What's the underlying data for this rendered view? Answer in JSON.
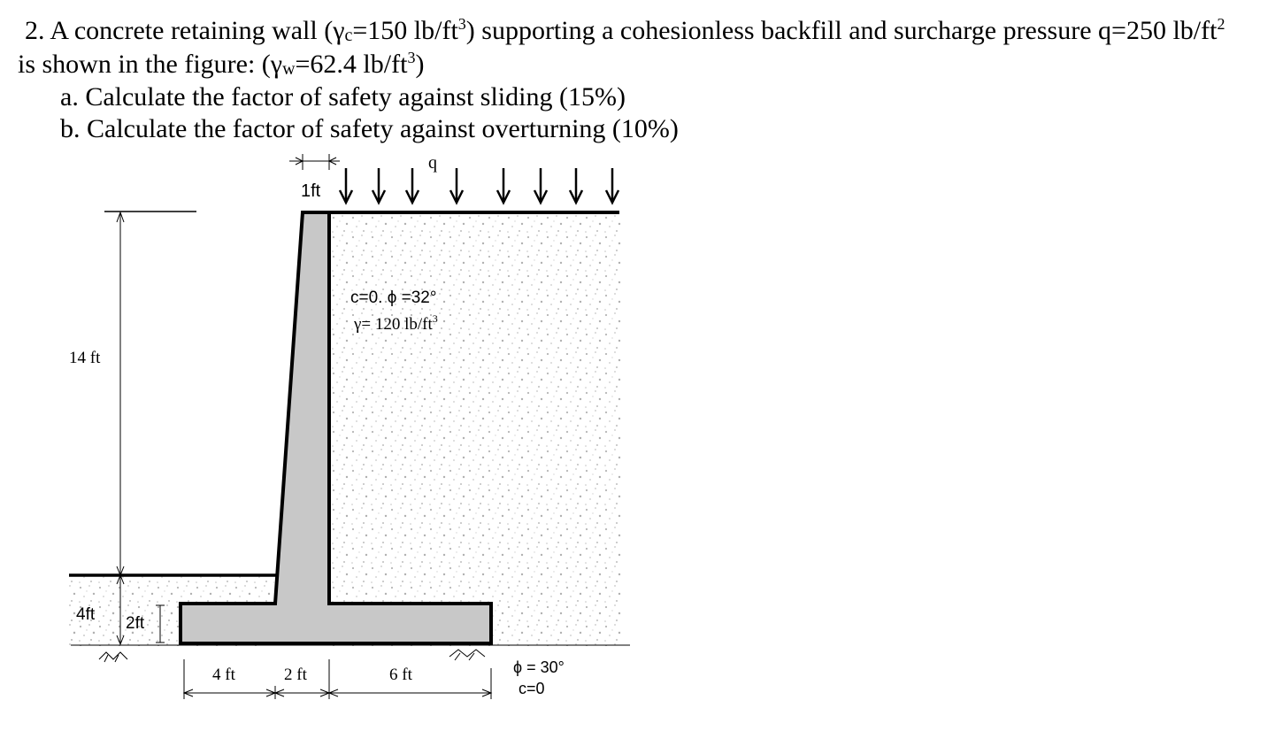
{
  "problem": {
    "line1_before_gc": "2. A concrete retaining wall (γ",
    "gc_sub": "c",
    "line1_mid": "=150 lb/ft",
    "exp3": "3",
    "line1_after": ") supporting a cohesionless backfill and surcharge pressure q=250 lb/ft",
    "exp2": "2",
    "line2_before": "is shown in the figure: (γ",
    "gw_sub": "w",
    "line2_mid": "=62.4 lb/ft",
    "line2_after": ")",
    "part_a": "a. Calculate the factor of safety against sliding (15%)",
    "part_b": "b. Calculate the factor of safety against overturning (10%)"
  },
  "figure": {
    "surcharge_label": "q",
    "stem_top_width": "1ft",
    "wall_height": "14 ft",
    "toe_height_total": "4ft",
    "base_thickness": "2ft",
    "toe_length": "4 ft",
    "stem_base_width": "2 ft",
    "heel_length": "6 ft",
    "backfill_props_line1": "c=0. ϕ =32°",
    "backfill_props_line2_before": "γ= 120 lb/ft",
    "backfill_props_exp": "3",
    "foundation_phi": "ϕ = 30°",
    "foundation_c": "c=0",
    "colors": {
      "concrete": "#c8c8c8",
      "soil_dot": "#b5b5b5",
      "line": "#000000"
    }
  }
}
